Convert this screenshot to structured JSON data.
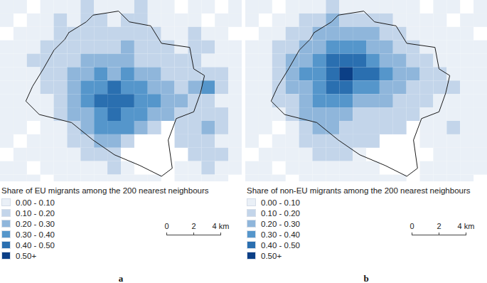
{
  "chart_data": [
    {
      "type": "map",
      "label": "a",
      "legend_title": "Share of EU migrants among the 200 nearest neighbours",
      "bins": [
        0,
        0.1,
        0.2,
        0.3,
        0.4,
        0.5
      ],
      "bin_labels": [
        "0.00 - 0.10",
        "0.10 - 0.20",
        "0.20 - 0.30",
        "0.30 - 0.40",
        "0.40 - 0.50",
        "0.50+"
      ],
      "colors": [
        "#eaf0f7",
        "#c3d5ea",
        "#8fb6db",
        "#5596cb",
        "#2a6fb0",
        "#0b3f86"
      ],
      "xlim": [
        0,
        18
      ],
      "ylim": [
        0,
        13.5
      ],
      "tick_labels": false,
      "scale_bar": {
        "ticks": [
          0,
          2,
          {
            "value": 4,
            "label": "4 km"
          }
        ]
      },
      "boundary": [
        [
          5.1,
          2.4
        ],
        [
          6.4,
          1.6
        ],
        [
          6.9,
          1.1
        ],
        [
          8.8,
          0.8
        ],
        [
          9.6,
          1.6
        ],
        [
          11.2,
          1.9
        ],
        [
          12.0,
          3.2
        ],
        [
          14.1,
          3.5
        ],
        [
          14.4,
          5.1
        ],
        [
          15.2,
          5.6
        ],
        [
          14.9,
          6.9
        ],
        [
          14.4,
          8.3
        ],
        [
          13.1,
          8.8
        ],
        [
          12.5,
          10.4
        ],
        [
          12.8,
          12.5
        ],
        [
          12.0,
          13.1
        ],
        [
          10.4,
          12.3
        ],
        [
          8.5,
          11.5
        ],
        [
          6.9,
          10.4
        ],
        [
          5.3,
          9.1
        ],
        [
          2.9,
          8.5
        ],
        [
          1.9,
          7.5
        ],
        [
          2.4,
          6.4
        ],
        [
          3.2,
          5.1
        ],
        [
          4.0,
          3.7
        ],
        [
          4.8,
          2.9
        ]
      ],
      "cells": [
        [
          0.05,
          0.05,
          null,
          0.05,
          0.05,
          0.05,
          0.15,
          0.05,
          0.05,
          0.05,
          0.15,
          0.05,
          0.05,
          null,
          0.05,
          0.05,
          null,
          0.05
        ],
        [
          0.05,
          null,
          0.05,
          0.05,
          0.15,
          0.05,
          0.15,
          0.15,
          0.05,
          0.15,
          0.15,
          0.05,
          0.05,
          0.05,
          0.05,
          null,
          0.05,
          0.05
        ],
        [
          null,
          0.05,
          0.05,
          0.05,
          0.15,
          0.15,
          0.15,
          0.15,
          0.15,
          0.15,
          0.15,
          0.15,
          0.05,
          0.05,
          0.15,
          0.05,
          0.05,
          null
        ],
        [
          0.05,
          0.05,
          0.05,
          0.15,
          0.15,
          0.15,
          0.15,
          0.15,
          0.15,
          0.25,
          0.15,
          0.15,
          0.15,
          0.05,
          0.15,
          0.15,
          0.05,
          0.05
        ],
        [
          0.05,
          0.05,
          0.15,
          0.15,
          0.15,
          0.15,
          0.25,
          0.25,
          0.25,
          0.25,
          0.15,
          0.15,
          0.15,
          0.15,
          0.15,
          0.05,
          0.05,
          0.05
        ],
        [
          0.05,
          0.05,
          0.05,
          0.15,
          0.15,
          0.25,
          0.25,
          0.35,
          0.25,
          0.35,
          0.25,
          0.25,
          0.15,
          0.15,
          0.15,
          0.15,
          0.15,
          0.05
        ],
        [
          0.05,
          0.05,
          0.05,
          0.15,
          0.15,
          0.25,
          0.35,
          0.35,
          0.45,
          0.35,
          0.35,
          0.25,
          0.25,
          0.15,
          0.25,
          0.35,
          0.15,
          0.05
        ],
        [
          0.05,
          0.05,
          0.05,
          0.05,
          0.15,
          0.25,
          0.35,
          0.45,
          0.45,
          0.45,
          0.35,
          0.35,
          0.25,
          0.25,
          0.15,
          0.15,
          0.05,
          0.05
        ],
        [
          0.05,
          0.05,
          0.05,
          0.05,
          0.15,
          0.25,
          0.25,
          0.35,
          0.45,
          0.35,
          0.35,
          0.25,
          0.25,
          0.15,
          0.15,
          0.15,
          0.15,
          0.05
        ],
        [
          0.05,
          0.05,
          null,
          0.05,
          0.05,
          0.15,
          0.25,
          0.35,
          0.35,
          0.35,
          0.25,
          0.15,
          null,
          0.15,
          0.15,
          0.25,
          0.15,
          0.05
        ],
        [
          0.05,
          null,
          0.05,
          0.05,
          0.05,
          0.15,
          0.15,
          0.25,
          0.25,
          0.15,
          null,
          null,
          null,
          0.15,
          0.15,
          0.15,
          0.05,
          0.05
        ],
        [
          null,
          0.05,
          0.05,
          0.05,
          0.05,
          0.05,
          0.15,
          0.15,
          0.15,
          null,
          null,
          null,
          null,
          null,
          0.15,
          0.15,
          0.15,
          0.05
        ],
        [
          0.05,
          0.05,
          null,
          0.05,
          0.05,
          0.05,
          0.05,
          0.05,
          0.15,
          0.05,
          null,
          null,
          null,
          0.05,
          0.05,
          0.15,
          0.05,
          0.05
        ],
        [
          0.05,
          0.05,
          0.05,
          null,
          0.05,
          0.05,
          0.05,
          0.05,
          0.05,
          0.05,
          0.05,
          0.05,
          null,
          0.05,
          0.05,
          0.05,
          0.05,
          null
        ]
      ]
    },
    {
      "type": "map",
      "label": "b",
      "legend_title": "Share of non-EU migrants among the 200 nearest neighbours",
      "bins": [
        0,
        0.1,
        0.2,
        0.3,
        0.4,
        0.5
      ],
      "bin_labels": [
        "0.00 - 0.10",
        "0.10 - 0.20",
        "0.20 - 0.30",
        "0.30 - 0.40",
        "0.40 - 0.50",
        "0.50+"
      ],
      "colors": [
        "#eaf0f7",
        "#c3d5ea",
        "#8fb6db",
        "#5596cb",
        "#2a6fb0",
        "#0b3f86"
      ],
      "xlim": [
        0,
        18
      ],
      "ylim": [
        0,
        13.5
      ],
      "tick_labels": false,
      "scale_bar": {
        "ticks": [
          0,
          2,
          {
            "value": 4,
            "label": "4 km"
          }
        ]
      },
      "boundary": [
        [
          5.1,
          2.4
        ],
        [
          6.4,
          1.6
        ],
        [
          6.9,
          1.1
        ],
        [
          8.8,
          0.8
        ],
        [
          9.6,
          1.6
        ],
        [
          11.2,
          1.9
        ],
        [
          12.0,
          3.2
        ],
        [
          14.1,
          3.5
        ],
        [
          14.4,
          5.1
        ],
        [
          15.2,
          5.6
        ],
        [
          14.9,
          6.9
        ],
        [
          14.4,
          8.3
        ],
        [
          13.1,
          8.8
        ],
        [
          12.5,
          10.4
        ],
        [
          12.8,
          12.5
        ],
        [
          12.0,
          13.1
        ],
        [
          10.4,
          12.3
        ],
        [
          8.5,
          11.5
        ],
        [
          6.9,
          10.4
        ],
        [
          5.3,
          9.1
        ],
        [
          2.9,
          8.5
        ],
        [
          1.9,
          7.5
        ],
        [
          2.4,
          6.4
        ],
        [
          3.2,
          5.1
        ],
        [
          4.0,
          3.7
        ],
        [
          4.8,
          2.9
        ]
      ],
      "cells": [
        [
          0.05,
          0.05,
          null,
          0.05,
          0.05,
          0.05,
          0.15,
          0.05,
          0.05,
          0.05,
          0.05,
          0.05,
          0.05,
          null,
          0.05,
          0.05,
          null,
          0.05
        ],
        [
          0.05,
          null,
          0.05,
          0.05,
          0.15,
          0.15,
          0.25,
          0.15,
          0.15,
          0.15,
          0.15,
          0.05,
          0.05,
          0.05,
          0.05,
          null,
          0.05,
          0.05
        ],
        [
          null,
          0.05,
          0.05,
          0.15,
          0.15,
          0.25,
          0.25,
          0.25,
          0.25,
          0.25,
          0.15,
          0.15,
          0.05,
          0.05,
          0.05,
          0.05,
          0.05,
          null
        ],
        [
          0.05,
          0.05,
          0.15,
          0.15,
          0.25,
          0.25,
          0.35,
          0.35,
          0.35,
          0.25,
          0.25,
          0.15,
          0.15,
          0.05,
          0.05,
          0.05,
          0.05,
          0.05
        ],
        [
          0.05,
          0.05,
          0.15,
          0.25,
          0.25,
          0.35,
          0.45,
          0.45,
          0.45,
          0.35,
          0.25,
          0.25,
          0.15,
          0.15,
          0.05,
          0.05,
          0.05,
          0.05
        ],
        [
          0.05,
          0.05,
          0.15,
          0.25,
          0.35,
          0.35,
          0.45,
          0.55,
          0.45,
          0.45,
          0.35,
          0.25,
          0.25,
          0.15,
          0.15,
          0.05,
          0.05,
          0.05
        ],
        [
          0.05,
          0.05,
          0.15,
          0.25,
          0.25,
          0.35,
          0.45,
          0.45,
          0.35,
          0.35,
          0.25,
          0.25,
          0.15,
          0.15,
          0.15,
          0.15,
          0.05,
          0.05
        ],
        [
          0.05,
          0.05,
          0.15,
          0.15,
          0.25,
          0.35,
          0.35,
          0.35,
          0.25,
          0.25,
          0.25,
          0.15,
          0.15,
          0.15,
          0.05,
          0.05,
          0.05,
          0.05
        ],
        [
          0.05,
          0.05,
          0.05,
          0.15,
          0.25,
          0.25,
          0.25,
          0.25,
          0.15,
          0.15,
          0.15,
          0.15,
          0.15,
          0.05,
          0.05,
          0.05,
          0.05,
          0.05
        ],
        [
          0.05,
          0.05,
          null,
          0.05,
          0.15,
          0.25,
          0.25,
          0.15,
          0.15,
          0.15,
          0.15,
          0.15,
          null,
          0.05,
          0.05,
          0.15,
          0.05,
          0.05
        ],
        [
          0.05,
          null,
          0.05,
          0.05,
          0.15,
          0.15,
          0.15,
          0.15,
          0.15,
          0.15,
          null,
          null,
          null,
          0.05,
          0.05,
          0.05,
          0.05,
          0.05
        ],
        [
          null,
          0.05,
          0.05,
          0.05,
          0.05,
          0.15,
          0.15,
          0.15,
          0.05,
          null,
          null,
          null,
          null,
          null,
          0.05,
          0.05,
          0.05,
          0.05
        ],
        [
          0.05,
          0.05,
          null,
          0.05,
          0.05,
          0.05,
          0.05,
          0.05,
          0.05,
          0.05,
          null,
          null,
          null,
          0.05,
          0.05,
          0.05,
          0.05,
          0.05
        ],
        [
          0.05,
          0.05,
          0.05,
          null,
          0.05,
          0.05,
          0.05,
          0.05,
          0.05,
          0.05,
          0.05,
          0.05,
          null,
          0.05,
          0.05,
          0.05,
          0.05,
          null
        ]
      ]
    }
  ]
}
